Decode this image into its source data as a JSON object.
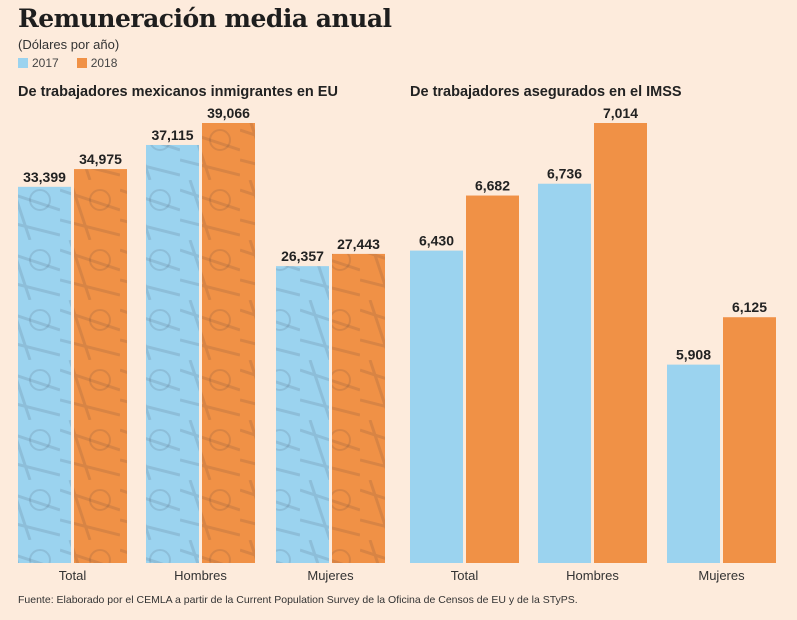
{
  "header": {
    "title": "Remuneración media anual",
    "subtitle": "(Dólares por año)"
  },
  "colors": {
    "2017": "#9bd3ef",
    "2018": "#f09146",
    "background": "#fdebdc",
    "label_text": "#222222"
  },
  "legend": [
    {
      "label": "2017",
      "color": "#9bd3ef"
    },
    {
      "label": "2018",
      "color": "#f09146"
    }
  ],
  "source": "Fuente: Elaborado por el CEMLA a partir de la Current Population Survey de la Oficina de Censos de EU y de la STyPS.",
  "chart_data": [
    {
      "type": "bar",
      "title": "De trabajadores mexicanos inmigrantes en EU",
      "categories": [
        "Total",
        "Hombres",
        "Mujeres"
      ],
      "series": [
        {
          "name": "2017",
          "values": [
            33399,
            37115,
            26357
          ],
          "labels": [
            "33,399",
            "37,115",
            "26,357"
          ]
        },
        {
          "name": "2018",
          "values": [
            34975,
            39066,
            27443
          ],
          "labels": [
            "34,975",
            "39,066",
            "27,443"
          ]
        }
      ],
      "xlabel": "",
      "ylabel": "Dólares por año",
      "ylim": [
        0,
        39066
      ],
      "grid": false,
      "background_texture": "dollar bills"
    },
    {
      "type": "bar",
      "title": "De trabajadores asegurados en el IMSS",
      "categories": [
        "Total",
        "Hombres",
        "Mujeres"
      ],
      "series": [
        {
          "name": "2017",
          "values": [
            6430,
            6736,
            5908
          ],
          "labels": [
            "6,430",
            "6,736",
            "5,908"
          ]
        },
        {
          "name": "2018",
          "values": [
            6682,
            7014,
            6125
          ],
          "labels": [
            "6,682",
            "7,014",
            "6,125"
          ]
        }
      ],
      "xlabel": "",
      "ylabel": "Dólares por año",
      "ylim": [
        5000,
        7014
      ],
      "grid": false
    }
  ]
}
